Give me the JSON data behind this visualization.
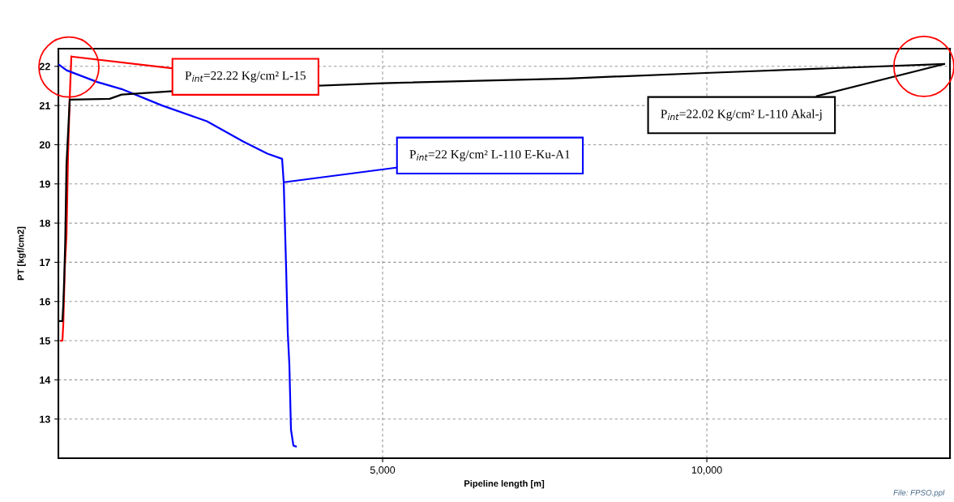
{
  "chart_data": {
    "type": "line",
    "xlabel": "Pipeline length [m]",
    "ylabel": "PT [kgf/cm2]",
    "xlim": [
      0,
      13750
    ],
    "ylim": [
      12.0,
      22.45
    ],
    "xticks": [
      {
        "value": 5000,
        "label": "5,000"
      },
      {
        "value": 10000,
        "label": "10,000"
      }
    ],
    "yticks": [
      13,
      14,
      15,
      16,
      17,
      18,
      19,
      20,
      21,
      22
    ],
    "grid": true,
    "line_style": "solid",
    "marker": "none",
    "series": [
      {
        "color": "#ff0000",
        "x": [
          40,
          62,
          75,
          100,
          125,
          150,
          175,
          200
        ],
        "values": [
          15.0,
          15.0,
          15.4,
          16.9,
          17.7,
          19.8,
          21.2,
          22.25
        ]
      },
      {
        "color": "#0000ff",
        "x": [
          12,
          125,
          600,
          975,
          1600,
          2290,
          2850,
          3225,
          3450,
          3475,
          3512,
          3537,
          3562,
          3587,
          3625,
          3662
        ],
        "values": [
          22.04,
          21.9,
          21.6,
          21.42,
          21.0,
          20.6,
          20.08,
          19.77,
          19.64,
          19.04,
          16.87,
          15.21,
          14.39,
          12.73,
          12.32,
          12.3
        ]
      },
      {
        "color": "#000000",
        "x": [
          0,
          62,
          75,
          90,
          105,
          125,
          175,
          790,
          975,
          1725,
          5000,
          7850,
          9975,
          13660
        ],
        "values": [
          15.5,
          15.5,
          15.9,
          16.6,
          17.5,
          19.5,
          21.15,
          21.17,
          21.28,
          21.36,
          21.57,
          21.69,
          21.83,
          22.06
        ]
      }
    ],
    "annotations": [
      {
        "text": "P$_{int}$=22.22 Kg/cm² L-15",
        "x": 200,
        "y": 22.25
      },
      {
        "text": "P$_{int}$=22 Kg/cm² L-110 E-Ku-A1",
        "x": 3475,
        "y": 19.04
      },
      {
        "text": "P$_{int}$=22.02 Kg/cm² L-110 Akal-j",
        "x": 13660,
        "y": 22.06
      },
      "File: FPSO.ppl"
    ]
  }
}
